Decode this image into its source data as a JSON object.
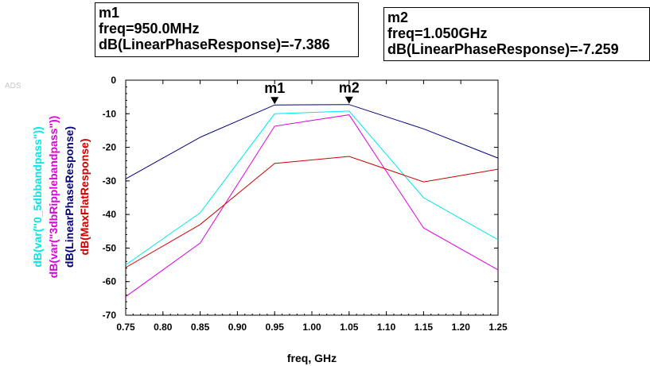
{
  "markers": [
    {
      "name": "m1",
      "freq_line": "freq=950.0MHz",
      "value_line": "dB(LinearPhaseResponse)=-7.386",
      "x": 0.95,
      "y": -7.386
    },
    {
      "name": "m2",
      "freq_line": "freq=1.050GHz",
      "value_line": "dB(LinearPhaseResponse)=-7.259",
      "x": 1.05,
      "y": -7.259
    }
  ],
  "watermark": "ADS",
  "chart_data": {
    "type": "line",
    "xlabel": "freq, GHz",
    "xlim": [
      0.75,
      1.25
    ],
    "ylim": [
      -70,
      0
    ],
    "xticks": [
      "0.75",
      "0.80",
      "0.85",
      "0.90",
      "0.95",
      "1.00",
      "1.05",
      "1.10",
      "1.15",
      "1.20",
      "1.25"
    ],
    "yticks": [
      "0",
      "-10",
      "-20",
      "-30",
      "-40",
      "-50",
      "-60",
      "-70"
    ],
    "grid": true,
    "x": [
      0.75,
      0.85,
      0.95,
      1.05,
      1.15,
      1.25
    ],
    "series": [
      {
        "name": "dB(var(\"0_5dbbandpass\"))",
        "color": "#00e8e8",
        "values": [
          -55.0,
          -39.5,
          -10.0,
          -9.2,
          -35.0,
          -47.5
        ]
      },
      {
        "name": "dB(var(\"3dbRipplebandpass\"))",
        "color": "#dd00dd",
        "values": [
          -64.5,
          -48.5,
          -13.7,
          -10.3,
          -44.0,
          -56.5
        ]
      },
      {
        "name": "dB(LinearPhaseResponse)",
        "color": "#000080",
        "values": [
          -29.4,
          -17.0,
          -7.386,
          -7.259,
          -14.5,
          -23.2
        ]
      },
      {
        "name": "dB(MaxFlatResponse)",
        "color": "#cc0000",
        "values": [
          -55.8,
          -43.0,
          -24.8,
          -22.7,
          -30.3,
          -26.5
        ]
      }
    ]
  }
}
